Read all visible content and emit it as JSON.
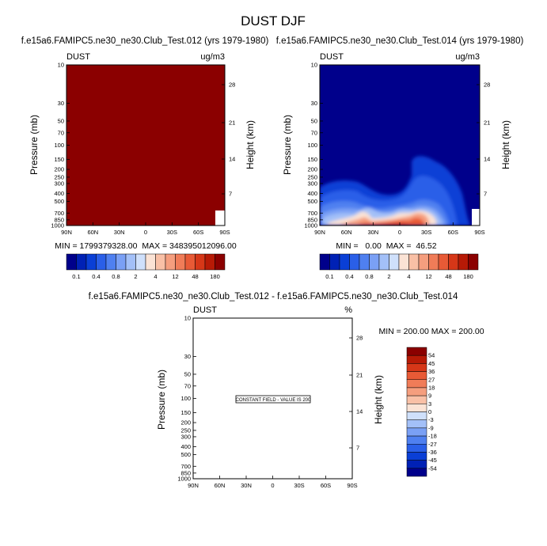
{
  "figure": {
    "title": "DUST DJF"
  },
  "colors": {
    "full_field": "#8b0000",
    "diverging_scale": [
      "#00008b",
      "#0021b5",
      "#0a3fd6",
      "#2a5fe8",
      "#4f80f0",
      "#7aa0f5",
      "#a3c0f8",
      "#cfe0fb",
      "#fbe3d5",
      "#f9c0a6",
      "#f59e7e",
      "#f07c58",
      "#e85a36",
      "#d63718",
      "#b71a06",
      "#8b0000"
    ]
  },
  "chart_data": [
    {
      "type": "heatmap",
      "id": "panel_a",
      "title": "f.e15a6.FAMIPC5.ne30_ne30.Club_Test.012 (yrs 1979-1980)",
      "variable": "DUST",
      "units": "ug/m3",
      "ylabel": "Pressure (mb)",
      "ylabel_right": "Height (km)",
      "x_ticks": [
        "90N",
        "60N",
        "30N",
        "0",
        "30S",
        "60S",
        "90S"
      ],
      "y_ticks": [
        "10",
        "30",
        "50",
        "70",
        "100",
        "150",
        "200",
        "250",
        "300",
        "400",
        "500",
        "700",
        "850",
        "1000"
      ],
      "y_ticks_right": [
        "28",
        "21",
        "14",
        "7"
      ],
      "stats": "MIN = 1799379328.00  MAX = 348395012096.00",
      "field": "saturated at top color",
      "colorbar_labels": [
        "0.1",
        "0.4",
        "0.8",
        "2",
        "4",
        "12",
        "48",
        "180"
      ]
    },
    {
      "type": "heatmap",
      "id": "panel_b",
      "title": "f.e15a6.FAMIPC5.ne30_ne30.Club_Test.014 (yrs 1979-1980)",
      "variable": "DUST",
      "units": "ug/m3",
      "ylabel": "Pressure (mb)",
      "ylabel_right": "Height (km)",
      "x_ticks": [
        "90N",
        "60N",
        "30N",
        "0",
        "30S",
        "60S",
        "90S"
      ],
      "y_ticks": [
        "10",
        "30",
        "50",
        "70",
        "100",
        "150",
        "200",
        "250",
        "300",
        "400",
        "500",
        "700",
        "850",
        "1000"
      ],
      "y_ticks_right": [
        "28",
        "21",
        "14",
        "7"
      ],
      "stats": "MIN =   0.00  MAX =  46.52",
      "min": 0.0,
      "max": 46.52,
      "colorbar_labels": [
        "0.1",
        "0.4",
        "0.8",
        "2",
        "4",
        "12",
        "48",
        "180"
      ]
    },
    {
      "type": "heatmap",
      "id": "panel_diff",
      "title": "f.e15a6.FAMIPC5.ne30_ne30.Club_Test.012 - f.e15a6.FAMIPC5.ne30_ne30.Club_Test.014",
      "variable": "DUST",
      "units": "%",
      "ylabel": "Pressure (mb)",
      "ylabel_right": "Height (km)",
      "x_ticks": [
        "90N",
        "60N",
        "30N",
        "0",
        "30S",
        "60S",
        "90S"
      ],
      "y_ticks": [
        "10",
        "30",
        "50",
        "70",
        "100",
        "150",
        "200",
        "250",
        "300",
        "400",
        "500",
        "700",
        "850",
        "1000"
      ],
      "y_ticks_right": [
        "28",
        "21",
        "14",
        "7"
      ],
      "stats": "MIN = 200.00  MAX = 200.00",
      "annotation": "CONSTANT FIELD - VALUE IS 200",
      "colorbar_labels": [
        "54",
        "45",
        "36",
        "27",
        "18",
        "9",
        "3",
        "0",
        "-3",
        "-9",
        "-18",
        "-27",
        "-36",
        "-45",
        "-54"
      ]
    }
  ]
}
